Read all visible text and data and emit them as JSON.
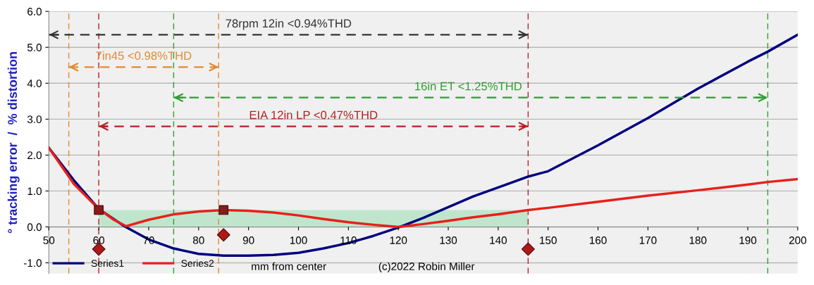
{
  "chart_data": {
    "type": "line",
    "ylabel": "° tracking error  /  % distortion",
    "xlabel": "mm from center",
    "xlim": [
      50,
      200
    ],
    "xticks": [
      50,
      60,
      70,
      80,
      90,
      100,
      110,
      120,
      130,
      140,
      150,
      160,
      170,
      180,
      190,
      200
    ],
    "ylim": [
      -1.3,
      6.0
    ],
    "yticks": [
      {
        "value": -1,
        "label": "-1.0"
      },
      {
        "value": 0,
        "label": "0.0"
      },
      {
        "value": 1,
        "label": "1.0"
      },
      {
        "value": 2,
        "label": "2.0"
      },
      {
        "value": 3,
        "label": "3.0"
      },
      {
        "value": 4,
        "label": "4.0"
      },
      {
        "value": 5,
        "label": "5.0"
      },
      {
        "value": 6,
        "label": "6.0"
      }
    ],
    "grid": "y",
    "legend": "bottom left",
    "series": [
      {
        "type": "area",
        "color": "#bfe6cc",
        "x": [
          60,
          146
        ],
        "values": [
          0.47,
          0.47
        ]
      },
      {
        "name": "Series1",
        "color": "#000080",
        "x": [
          50,
          55,
          60,
          65,
          70,
          75,
          80,
          85,
          90,
          95,
          100,
          105,
          110,
          115,
          120,
          125,
          130,
          135,
          140,
          146,
          150,
          160,
          170,
          180,
          190,
          194,
          200
        ],
        "values": [
          2.2,
          1.3,
          0.5,
          0.03,
          -0.35,
          -0.6,
          -0.75,
          -0.8,
          -0.8,
          -0.78,
          -0.72,
          -0.6,
          -0.45,
          -0.25,
          -0.02,
          0.25,
          0.55,
          0.85,
          1.1,
          1.4,
          1.55,
          2.27,
          3.03,
          3.85,
          4.6,
          4.88,
          5.35
        ]
      },
      {
        "name": "Series2",
        "color": "#e8201a",
        "x": [
          50,
          55,
          60,
          63,
          65.5,
          70,
          75,
          80,
          85,
          90,
          95,
          100,
          105,
          110,
          115,
          120,
          125,
          130,
          135,
          140,
          146,
          150,
          160,
          170,
          180,
          190,
          194,
          200
        ],
        "values": [
          2.2,
          1.2,
          0.5,
          0.2,
          0.02,
          0.2,
          0.35,
          0.43,
          0.47,
          0.45,
          0.4,
          0.32,
          0.22,
          0.13,
          0.06,
          0.0,
          0.08,
          0.17,
          0.27,
          0.35,
          0.47,
          0.53,
          0.7,
          0.87,
          1.02,
          1.18,
          1.25,
          1.33
        ]
      },
      {
        "type": "scatter",
        "marker": "square",
        "color": "#8b1a1a",
        "x": [
          60,
          85
        ],
        "values": [
          0.47,
          0.47
        ]
      },
      {
        "type": "scatter",
        "marker": "diamond",
        "color": "#b01818",
        "x": [
          60,
          85,
          146
        ],
        "values": [
          -0.62,
          -0.22,
          -0.62
        ]
      },
      {
        "line_style": "dashed",
        "color": "#333333",
        "x": [
          50,
          146
        ],
        "values": [
          5.35,
          5.35
        ]
      },
      {
        "line_style": "dashed",
        "color": "#e08a30",
        "x": [
          54,
          84
        ],
        "values": [
          4.45,
          4.45
        ]
      },
      {
        "line_style": "dashed",
        "color": "#2ca02c",
        "x": [
          75,
          194
        ],
        "values": [
          3.6,
          3.6
        ]
      },
      {
        "line_style": "dashed",
        "color": "#b22222",
        "x": [
          60,
          146
        ],
        "values": [
          2.8,
          2.8
        ]
      }
    ],
    "ref_lines": [
      {
        "axis": "x",
        "value": 54,
        "color": "#e08a30",
        "line_style": "dashed"
      },
      {
        "axis": "x",
        "value": 84,
        "color": "#e08a30",
        "line_style": "dashed"
      },
      {
        "axis": "x",
        "value": 60,
        "color": "#b22222",
        "line_style": "dashed"
      },
      {
        "axis": "x",
        "value": 146,
        "color": "#b22222",
        "line_style": "dashed"
      },
      {
        "axis": "x",
        "value": 75,
        "color": "#2ca02c",
        "line_style": "dashed"
      },
      {
        "axis": "x",
        "value": 194,
        "color": "#2ca02c",
        "line_style": "dashed"
      }
    ],
    "annotations": [
      {
        "text": "78rpm 12in <0.94%THD",
        "x": 98,
        "y": 5.35
      },
      {
        "text": "7in45 <0.98%THD",
        "x": 69,
        "y": 4.45
      },
      {
        "text": "16in ET <1.25%THD",
        "x": 134,
        "y": 3.6
      },
      {
        "text": "EIA 12in LP <0.47%THD",
        "x": 103,
        "y": 2.8
      },
      "(c)2022 Robin Miller"
    ]
  }
}
